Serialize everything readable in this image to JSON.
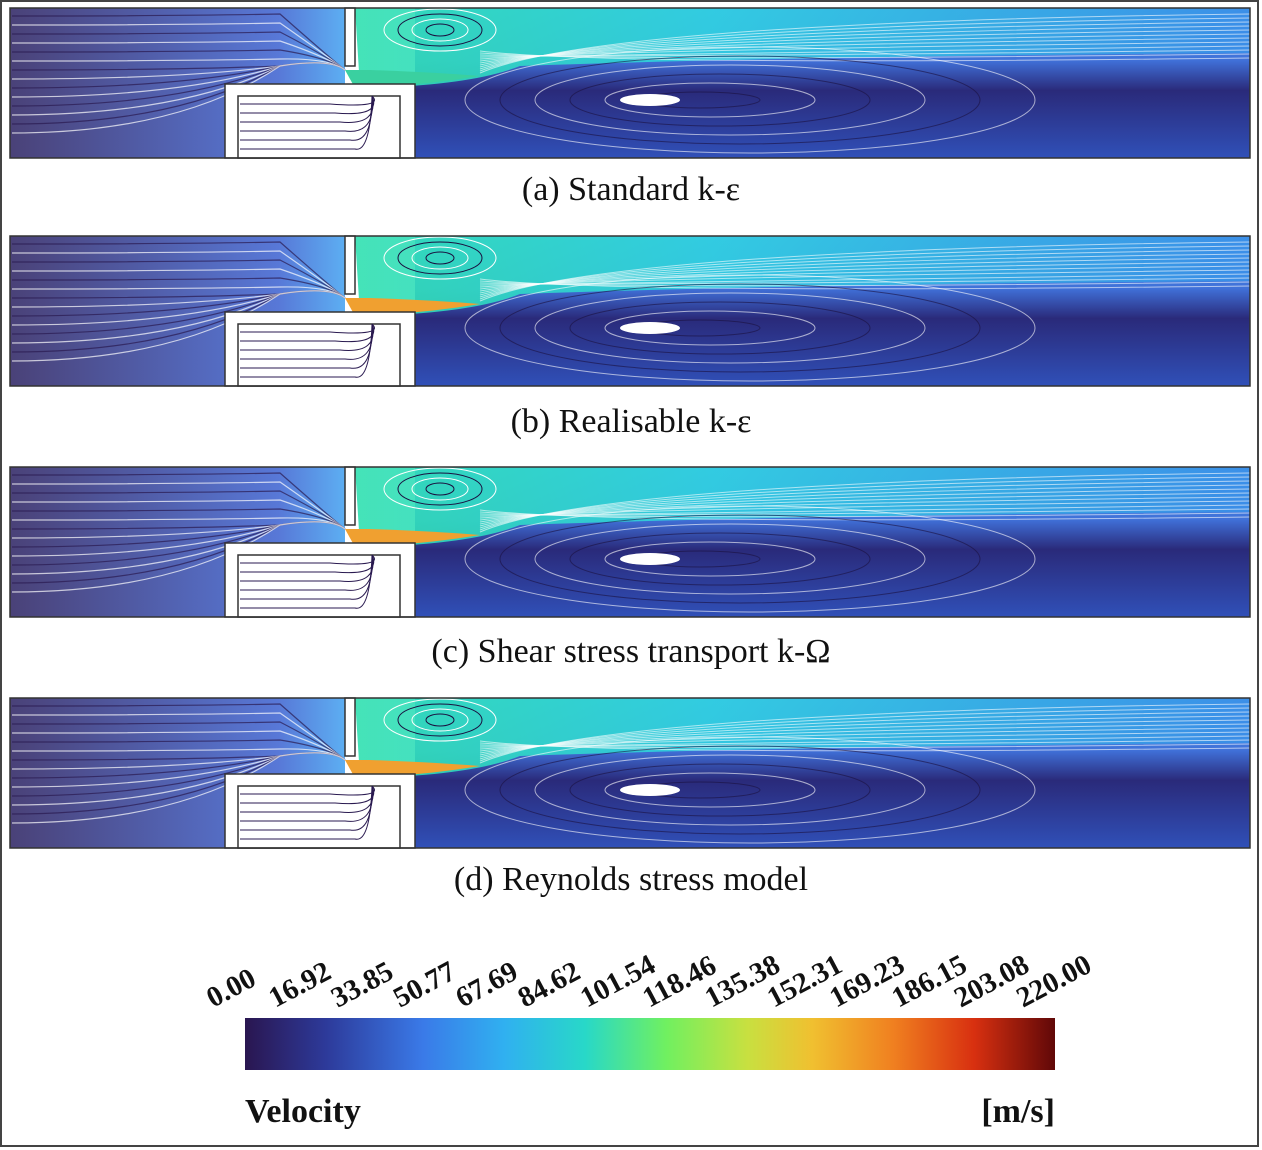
{
  "panels": [
    {
      "caption": "(a) Standard k-ε"
    },
    {
      "caption": "(b) Realisable k-ε"
    },
    {
      "caption": "(c) Shear stress transport k-Ω"
    },
    {
      "caption": "(d) Reynolds stress model"
    }
  ],
  "colorbar": {
    "ticks": [
      "0.00",
      "16.92",
      "33.85",
      "50.77",
      "67.69",
      "84.62",
      "101.54",
      "118.46",
      "135.38",
      "152.31",
      "169.23",
      "186.15",
      "203.08",
      "220.00"
    ],
    "title": "Velocity",
    "unit": "[m/s]"
  }
}
